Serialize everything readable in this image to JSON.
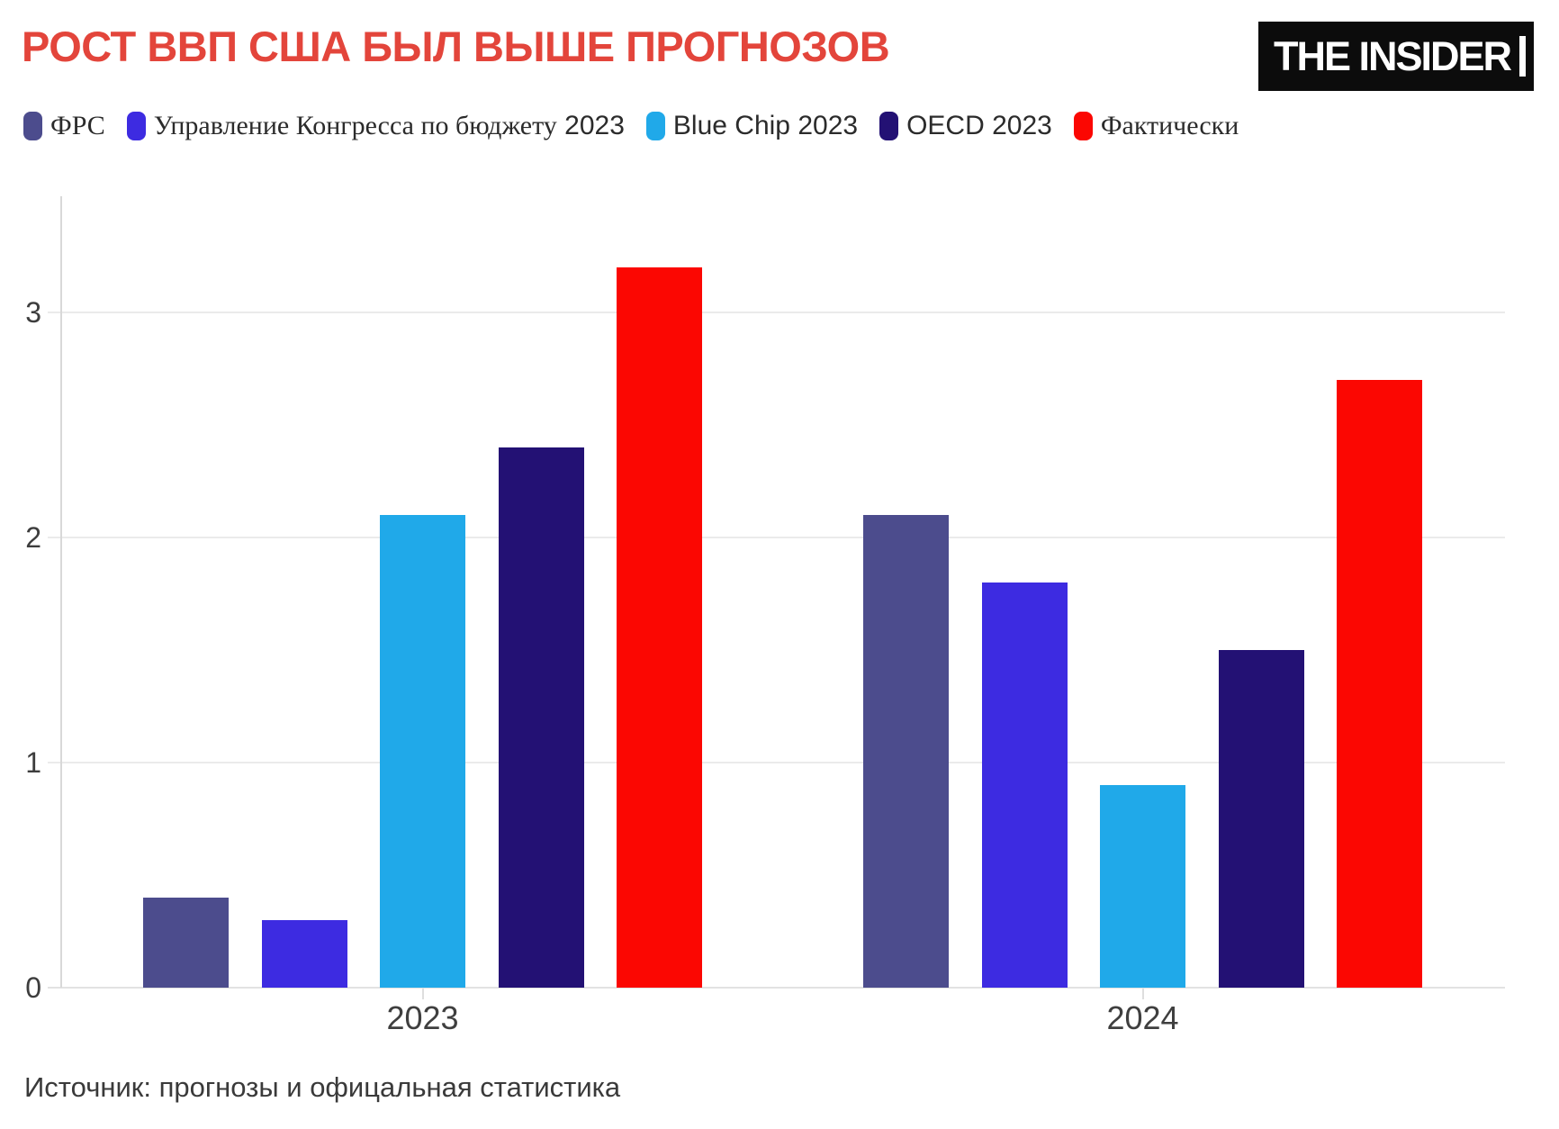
{
  "header": {
    "title": "РОСТ ВВП США БЫЛ ВЫШЕ ПРОГНОЗОВ",
    "logo_text": "THE INSIDER"
  },
  "colors": {
    "title_accent": "#e3453b",
    "fed": "#4c4c8d",
    "cbo": "#3d2be1",
    "blue_chip": "#20a9e9",
    "oecd": "#231174",
    "actual": "#fb0702",
    "grid": "#ebebeb",
    "axis": "#d8d8d8",
    "tick_text": "#3d3d3d"
  },
  "legend": {
    "items": [
      {
        "cyr": "ФРС",
        "lat": "",
        "color": "#4c4c8d"
      },
      {
        "cyr": "Управление Конгресса по бюджету",
        "lat": "2023",
        "color": "#3d2be1"
      },
      {
        "cyr": "",
        "lat": "Blue Chip 2023",
        "color": "#20a9e9"
      },
      {
        "cyr": "",
        "lat": "OECD 2023",
        "color": "#231174"
      },
      {
        "cyr": "Фактически",
        "lat": "",
        "color": "#fb0702"
      }
    ]
  },
  "chart_data": {
    "type": "bar",
    "categories": [
      "2023",
      "2024"
    ],
    "series": [
      {
        "name": "ФРС",
        "color": "#4c4c8d",
        "values": [
          0.4,
          2.1
        ]
      },
      {
        "name": "Управление Конгресса по бюджету 2023",
        "color": "#3d2be1",
        "values": [
          0.3,
          1.8
        ]
      },
      {
        "name": "Blue Chip 2023",
        "color": "#20a9e9",
        "values": [
          2.1,
          0.9
        ]
      },
      {
        "name": "OECD 2023",
        "color": "#231174",
        "values": [
          2.4,
          1.5
        ]
      },
      {
        "name": "Фактически",
        "color": "#fb0702",
        "values": [
          3.2,
          2.7
        ]
      }
    ],
    "ylim": [
      0,
      3.5
    ],
    "yticks": [
      0,
      1,
      2,
      3
    ],
    "grid": "horizontal",
    "legend_position": "top"
  },
  "footer": {
    "source": "Источник: прогнозы и офицальная статистика"
  }
}
